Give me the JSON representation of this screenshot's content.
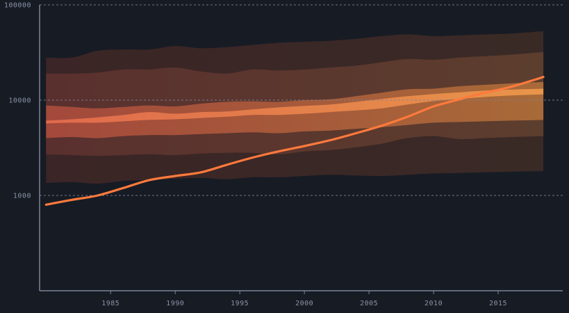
{
  "chart_data": {
    "type": "area",
    "yscale": "log",
    "ylim": [
      100,
      100000
    ],
    "xlim": [
      1979.5,
      2020
    ],
    "grid": "horizontal-dashed",
    "legend": "none",
    "yticks": [
      {
        "value": 1000,
        "label": "1000"
      },
      {
        "value": 10000,
        "label": "10000"
      },
      {
        "value": 100000,
        "label": "100000"
      }
    ],
    "xticks": [
      {
        "value": 1985,
        "label": "1985"
      },
      {
        "value": 1990,
        "label": "1990"
      },
      {
        "value": 1995,
        "label": "1995"
      },
      {
        "value": 2000,
        "label": "2000"
      },
      {
        "value": 2005,
        "label": "2005"
      },
      {
        "value": 2010,
        "label": "2010"
      },
      {
        "value": 2015,
        "label": "2015"
      }
    ],
    "x": [
      1980,
      1982,
      1984,
      1986,
      1988,
      1990,
      1992,
      1994,
      1996,
      1998,
      2000,
      2002,
      2004,
      2006,
      2008,
      2010,
      2012,
      2014,
      2016,
      2018.5
    ],
    "bands": [
      {
        "lower": [
          1350,
          1380,
          1330,
          1420,
          1450,
          1500,
          1530,
          1480,
          1550,
          1550,
          1600,
          1650,
          1620,
          1600,
          1650,
          1700,
          1720,
          1750,
          1780,
          1800
        ],
        "upper": [
          28000,
          28000,
          33000,
          34000,
          34000,
          37000,
          35000,
          36000,
          38000,
          40000,
          41000,
          42000,
          44000,
          47000,
          49000,
          47000,
          48000,
          49000,
          50000,
          53000
        ]
      },
      {
        "lower": [
          2700,
          2650,
          2600,
          2650,
          2700,
          2650,
          2750,
          2800,
          2800,
          2700,
          2900,
          3000,
          3200,
          3500,
          4000,
          4200,
          3900,
          4000,
          4100,
          4200
        ],
        "upper": [
          19000,
          19000,
          19500,
          21000,
          21000,
          22000,
          20000,
          19000,
          21000,
          20500,
          21000,
          22000,
          23000,
          25000,
          27000,
          26500,
          28000,
          29000,
          30000,
          32000
        ]
      },
      {
        "lower": [
          4000,
          4100,
          4000,
          4200,
          4300,
          4300,
          4400,
          4500,
          4600,
          4500,
          4700,
          4800,
          5000,
          5200,
          5500,
          5800,
          5900,
          6000,
          6100,
          6200
        ],
        "upper": [
          8800,
          8500,
          8200,
          8500,
          8800,
          8600,
          9200,
          9600,
          9700,
          9600,
          10000,
          10200,
          11000,
          12000,
          13000,
          13200,
          14000,
          14500,
          15000,
          15500
        ]
      },
      {
        "lower": [
          5700,
          5800,
          5800,
          6000,
          6200,
          6300,
          6500,
          6700,
          7000,
          7000,
          7200,
          7500,
          7800,
          8200,
          9000,
          9800,
          10300,
          10800,
          11200,
          11500
        ],
        "upper": [
          6100,
          6300,
          6600,
          7000,
          7500,
          7200,
          7500,
          7600,
          8000,
          8400,
          8700,
          9000,
          9600,
          10300,
          11000,
          11600,
          12100,
          12600,
          12900,
          13200
        ]
      }
    ],
    "band_colors": [
      [
        "#3b2526",
        "#3a2a26"
      ],
      [
        "#5a302e",
        "#5c3e2e"
      ],
      [
        "#a4493c",
        "#a86a38"
      ],
      [
        "#e06a4c",
        "#e8954a"
      ]
    ],
    "series": [
      {
        "color": "#ff7a3d",
        "values": [
          800,
          900,
          1000,
          1200,
          1450,
          1600,
          1750,
          2100,
          2500,
          2900,
          3300,
          3800,
          4500,
          5400,
          6700,
          8600,
          10200,
          12000,
          13800,
          17500
        ]
      }
    ]
  }
}
